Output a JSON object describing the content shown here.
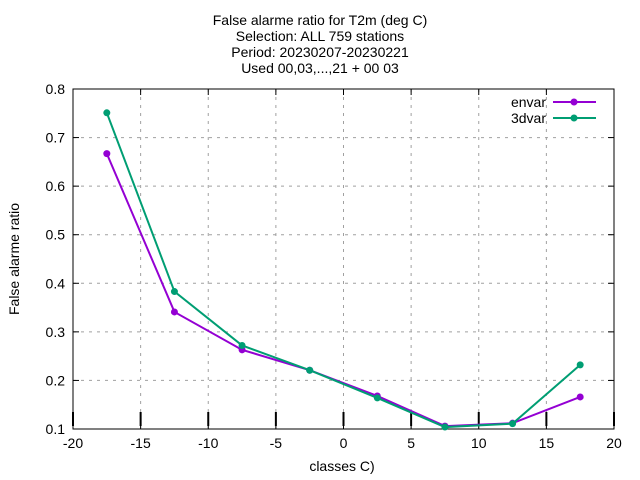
{
  "chart_data": {
    "type": "line",
    "title_lines": [
      "False alarme ratio  for T2m (deg C)",
      "Selection: ALL    759 stations",
      "Period: 20230207-20230221",
      "Used 00,03,...,21 + 00 03"
    ],
    "xlabel": "classes C)",
    "ylabel": "False alarme ratio",
    "xlim": [
      -20,
      20
    ],
    "ylim": [
      0.1,
      0.8
    ],
    "x_ticks": [
      -20,
      -15,
      -10,
      -5,
      0,
      5,
      10,
      15,
      20
    ],
    "y_ticks": [
      0.1,
      0.2,
      0.3,
      0.4,
      0.5,
      0.6,
      0.7,
      0.8
    ],
    "grid": true,
    "legend_position": "top-right",
    "series": [
      {
        "name": "envar",
        "color": "#9400d3",
        "x": [
          -17.5,
          -12.5,
          -7.5,
          -2.5,
          2.5,
          7.5,
          12.5,
          17.5
        ],
        "y": [
          0.667,
          0.341,
          0.263,
          0.221,
          0.168,
          0.106,
          0.112,
          0.166
        ]
      },
      {
        "name": "3dvar",
        "color": "#009e73",
        "x": [
          -17.5,
          -12.5,
          -7.5,
          -2.5,
          2.5,
          7.5,
          12.5,
          17.5
        ],
        "y": [
          0.751,
          0.383,
          0.272,
          0.221,
          0.164,
          0.104,
          0.111,
          0.232
        ]
      }
    ]
  }
}
